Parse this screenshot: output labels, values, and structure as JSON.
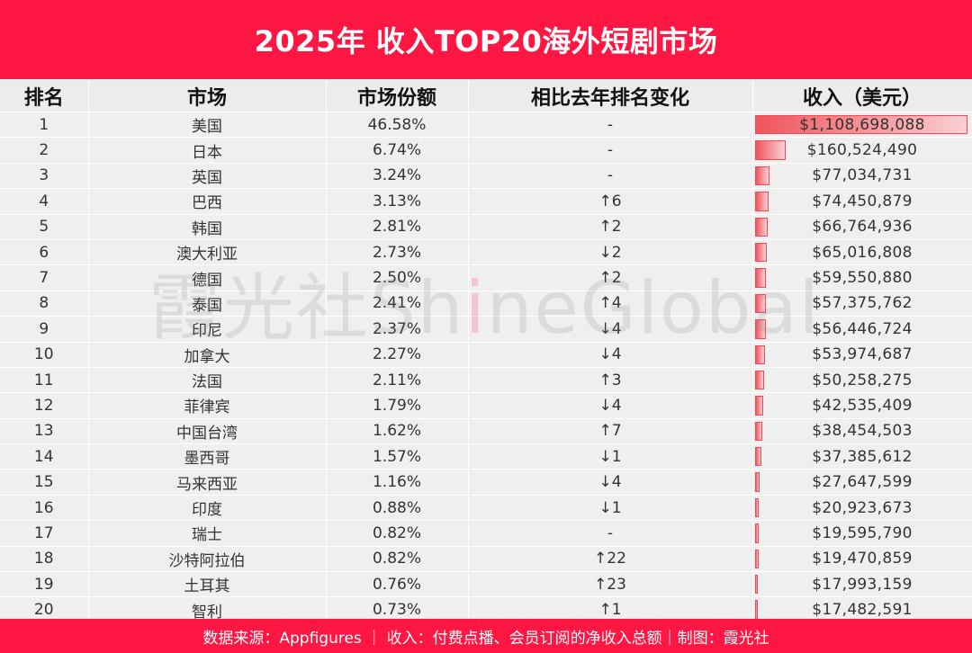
{
  "header": {
    "title": "2025年 收入TOP20海外短剧市场"
  },
  "table": {
    "columns": [
      "排名",
      "市场",
      "市场份额",
      "相比去年排名变化",
      "收入（美元）"
    ],
    "rows": [
      {
        "rank": "1",
        "market": "美国",
        "share": "46.58%",
        "change": "-",
        "revenue": "$1,108,698,088",
        "value": 1108698088
      },
      {
        "rank": "2",
        "market": "日本",
        "share": "6.74%",
        "change": "-",
        "revenue": "$160,524,490",
        "value": 160524490
      },
      {
        "rank": "3",
        "market": "英国",
        "share": "3.24%",
        "change": "-",
        "revenue": "$77,034,731",
        "value": 77034731
      },
      {
        "rank": "4",
        "market": "巴西",
        "share": "3.13%",
        "change": "↑6",
        "revenue": "$74,450,879",
        "value": 74450879
      },
      {
        "rank": "5",
        "market": "韩国",
        "share": "2.81%",
        "change": "↑2",
        "revenue": "$66,764,936",
        "value": 66764936
      },
      {
        "rank": "6",
        "market": "澳大利亚",
        "share": "2.73%",
        "change": "↓2",
        "revenue": "$65,016,808",
        "value": 65016808
      },
      {
        "rank": "7",
        "market": "德国",
        "share": "2.50%",
        "change": "↑2",
        "revenue": "$59,550,880",
        "value": 59550880
      },
      {
        "rank": "8",
        "market": "泰国",
        "share": "2.41%",
        "change": "↑4",
        "revenue": "$57,375,762",
        "value": 57375762
      },
      {
        "rank": "9",
        "market": "印尼",
        "share": "2.37%",
        "change": "↓4",
        "revenue": "$56,446,724",
        "value": 56446724
      },
      {
        "rank": "10",
        "market": "加拿大",
        "share": "2.27%",
        "change": "↓4",
        "revenue": "$53,974,687",
        "value": 53974687
      },
      {
        "rank": "11",
        "market": "法国",
        "share": "2.11%",
        "change": "↑3",
        "revenue": "$50,258,275",
        "value": 50258275
      },
      {
        "rank": "12",
        "market": "菲律宾",
        "share": "1.79%",
        "change": "↓4",
        "revenue": "$42,535,409",
        "value": 42535409
      },
      {
        "rank": "13",
        "market": "中国台湾",
        "share": "1.62%",
        "change": "↑7",
        "revenue": "$38,454,503",
        "value": 38454503
      },
      {
        "rank": "14",
        "market": "墨西哥",
        "share": "1.57%",
        "change": "↓1",
        "revenue": "$37,385,612",
        "value": 37385612
      },
      {
        "rank": "15",
        "market": "马来西亚",
        "share": "1.16%",
        "change": "↓4",
        "revenue": "$27,647,599",
        "value": 27647599
      },
      {
        "rank": "16",
        "market": "印度",
        "share": "0.88%",
        "change": "↓1",
        "revenue": "$20,923,673",
        "value": 20923673
      },
      {
        "rank": "17",
        "market": "瑞士",
        "share": "0.82%",
        "change": "-",
        "revenue": "$19,595,790",
        "value": 19595790
      },
      {
        "rank": "18",
        "market": "沙特阿拉伯",
        "share": "0.82%",
        "change": "↑22",
        "revenue": "$19,470,859",
        "value": 19470859
      },
      {
        "rank": "19",
        "market": "土耳其",
        "share": "0.76%",
        "change": "↑23",
        "revenue": "$17,993,159",
        "value": 17993159
      },
      {
        "rank": "20",
        "market": "智利",
        "share": "0.73%",
        "change": "↑1",
        "revenue": "$17,482,591",
        "value": 17482591
      }
    ]
  },
  "watermark": {
    "cn": "霞光社",
    "en_pre": "Sh",
    "en_accent": "i",
    "en_post": "neGlobal"
  },
  "footer": {
    "text": "数据来源：Appfigures ｜ 收入：付费点播、会员订阅的净收入总额｜制图：霞光社"
  },
  "colors": {
    "brand": "#ff1744",
    "bar": "#f0545c"
  }
}
